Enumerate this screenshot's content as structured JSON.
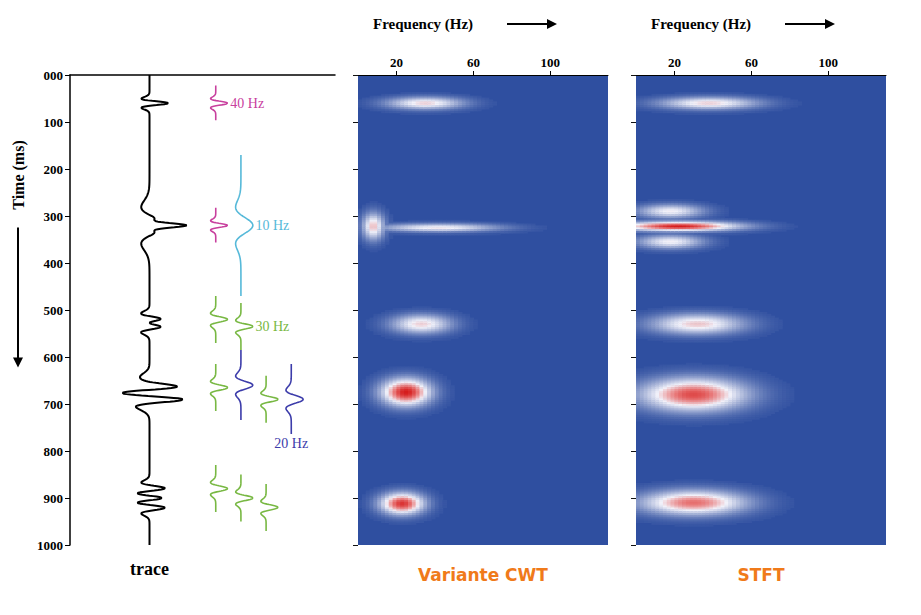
{
  "chart_data": [
    {
      "type": "line",
      "xlabel": "trace",
      "ylabel": "Time (ms)",
      "ylim": [
        0,
        1000
      ],
      "yticks": [
        {
          "value": 0,
          "label": "000"
        },
        100,
        200,
        300,
        400,
        500,
        600,
        700,
        800,
        900,
        1000
      ],
      "tick_labels": "y",
      "series": [
        {
          "name": "40 Hz",
          "color": "#c8409e",
          "frequency": 40,
          "events": [
            {
              "time": 60,
              "column": 1
            },
            {
              "time": 320,
              "column": 1
            }
          ]
        },
        {
          "name": "10 Hz",
          "color": "#56b9d9",
          "frequency": 10,
          "events": [
            {
              "time": 320,
              "column": 2
            }
          ]
        },
        {
          "name": "30 Hz",
          "color": "#78b843",
          "frequency": 30,
          "events": [
            {
              "time": 520,
              "column": 1
            },
            {
              "time": 535,
              "column": 2
            },
            {
              "time": 665,
              "column": 1
            },
            {
              "time": 690,
              "column": 3
            },
            {
              "time": 880,
              "column": 1
            },
            {
              "time": 900,
              "column": 2
            },
            {
              "time": 920,
              "column": 3
            }
          ]
        },
        {
          "name": "20 Hz",
          "color": "#3c3caa",
          "frequency": 20,
          "events": [
            {
              "time": 660,
              "column": 2
            },
            {
              "time": 690,
              "column": 4
            }
          ]
        }
      ]
    },
    {
      "type": "heatmap",
      "title": "Variante CWT",
      "xlabel": "Frequency (Hz)",
      "xlim": [
        0,
        130
      ],
      "xticks": [
        20,
        60,
        100
      ],
      "ylim": [
        0,
        1000
      ],
      "yticks": [
        0,
        100,
        200,
        300,
        400,
        500,
        600,
        700,
        800,
        900,
        1000
      ],
      "tick_labels": "x",
      "intensity_range": [
        0,
        1
      ],
      "blobs": [
        {
          "time": 60,
          "frequency": 35,
          "time_spread": 9,
          "frequency_spread": 14,
          "intensity": 0.62
        },
        {
          "time": 322,
          "frequency": 8,
          "time_spread": 20,
          "frequency_spread": 4,
          "intensity": 0.66
        },
        {
          "time": 325,
          "frequency": 42,
          "time_spread": 6,
          "frequency_spread": 22,
          "intensity": 0.58
        },
        {
          "time": 530,
          "frequency": 33,
          "time_spread": 14,
          "frequency_spread": 11,
          "intensity": 0.62
        },
        {
          "time": 675,
          "frequency": 25,
          "time_spread": 20,
          "frequency_spread": 9,
          "intensity": 1.0
        },
        {
          "time": 912,
          "frequency": 23,
          "time_spread": 16,
          "frequency_spread": 8,
          "intensity": 0.95
        }
      ]
    },
    {
      "type": "heatmap",
      "title": "STFT",
      "xlabel": "Frequency (Hz)",
      "xlim": [
        0,
        130
      ],
      "xticks": [
        20,
        60,
        100
      ],
      "ylim": [
        0,
        1000
      ],
      "yticks": [
        0,
        100,
        200,
        300,
        400,
        500,
        600,
        700,
        800,
        900,
        1000
      ],
      "tick_labels": "x",
      "intensity_range": [
        0,
        1
      ],
      "blobs": [
        {
          "time": 60,
          "frequency": 38,
          "time_spread": 9,
          "frequency_spread": 18,
          "intensity": 0.62
        },
        {
          "time": 322,
          "frequency": 22,
          "time_spread": 7,
          "frequency_spread": 22,
          "intensity": 1.0
        },
        {
          "time": 290,
          "frequency": 18,
          "time_spread": 10,
          "frequency_spread": 12,
          "intensity": 0.56
        },
        {
          "time": 355,
          "frequency": 18,
          "time_spread": 10,
          "frequency_spread": 12,
          "intensity": 0.56
        },
        {
          "time": 530,
          "frequency": 32,
          "time_spread": 15,
          "frequency_spread": 17,
          "intensity": 0.64
        },
        {
          "time": 680,
          "frequency": 30,
          "time_spread": 24,
          "frequency_spread": 19,
          "intensity": 0.9
        },
        {
          "time": 910,
          "frequency": 30,
          "time_spread": 18,
          "frequency_spread": 19,
          "intensity": 0.82
        }
      ]
    }
  ]
}
